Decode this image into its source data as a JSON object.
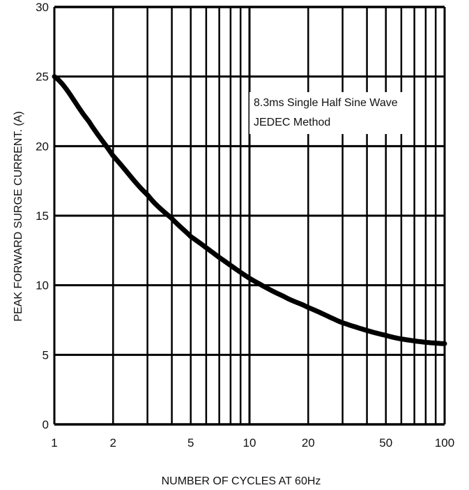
{
  "chart_data": {
    "type": "line",
    "xlabel": "NUMBER OF CYCLES AT 60Hz",
    "ylabel": "PEAK FORWARD SURGE CURRENT. (A)",
    "x_scale": "log",
    "xlim": [
      1,
      100
    ],
    "ylim": [
      0,
      30
    ],
    "x_ticks": [
      1,
      2,
      5,
      10,
      20,
      50,
      100
    ],
    "x_tick_labels": [
      "1",
      "2",
      "5",
      "10",
      "20",
      "50",
      "100"
    ],
    "y_ticks": [
      0,
      5,
      10,
      15,
      20,
      25,
      30
    ],
    "y_tick_labels": [
      "0",
      "5",
      "10",
      "15",
      "20",
      "25",
      "30"
    ],
    "grid": true,
    "annotation_lines": [
      "8.3ms Single Half Sine Wave",
      "JEDEC Method"
    ],
    "series": [
      {
        "x": [
          1,
          1.5,
          2,
          3,
          4,
          5,
          7,
          10,
          15,
          20,
          30,
          50,
          70,
          100
        ],
        "y": [
          25,
          21.8,
          19.3,
          16.5,
          14.8,
          13.5,
          12.0,
          10.5,
          9.2,
          8.4,
          7.3,
          6.4,
          6.0,
          5.8
        ]
      }
    ]
  }
}
